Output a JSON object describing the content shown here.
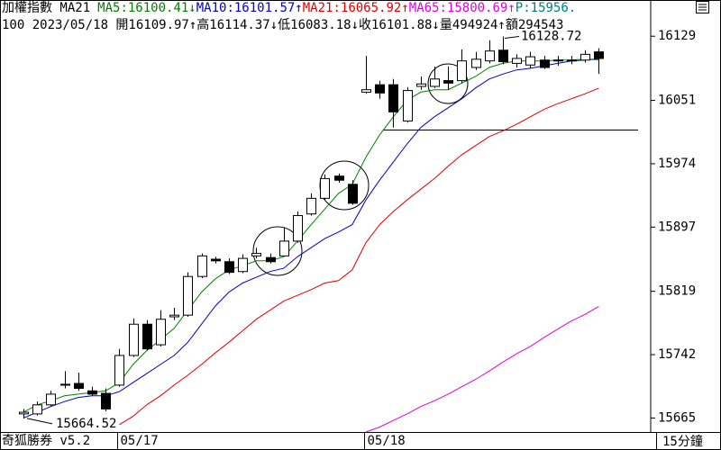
{
  "chart_data": {
    "type": "candlestick",
    "title": "加權指數 MA21",
    "subtitle": "100 2023/05/18 開16109.97↑高16114.37↓低16083.18↓收16101.88↓量494924↑額294543",
    "indicator": {
      "text": "P:15956.",
      "color": "#008080"
    },
    "categories": [
      null,
      null,
      null,
      null,
      null,
      null,
      null,
      "05/17",
      null,
      null,
      null,
      null,
      null,
      null,
      null,
      null,
      null,
      null,
      null,
      null,
      null,
      null,
      null,
      null,
      null,
      "05/18",
      null,
      null,
      null,
      null,
      null,
      null,
      null,
      null,
      null,
      null,
      null,
      null,
      null,
      null,
      null,
      null,
      null
    ],
    "open": [
      15670,
      15670,
      15681,
      15705,
      15707,
      15698,
      15695,
      15705,
      15741,
      15779,
      15754,
      15788,
      15790,
      15837,
      15858,
      15855,
      15843,
      15862,
      15860,
      15862,
      15880,
      15913,
      15932,
      15959,
      15949,
      16061,
      16070,
      16070,
      16026,
      16068,
      16068,
      16075,
      16075,
      16091,
      16099,
      16112,
      16096,
      16094,
      16100,
      16099,
      16100,
      16100,
      16109.97
    ],
    "high": [
      15676,
      15685,
      15698,
      15722,
      15720,
      15703,
      15701,
      15749,
      15786,
      15784,
      15796,
      15799,
      15842,
      15865,
      15861,
      15859,
      15864,
      15872,
      15865,
      15897,
      15916,
      15938,
      15961,
      15962,
      15954,
      16105,
      16075,
      16077,
      16067,
      16080,
      16092,
      16092,
      16113,
      16110,
      16124,
      16128.72,
      16107,
      16110,
      16105,
      16105,
      16105,
      16112,
      16114.37
    ],
    "low": [
      15664.52,
      15668,
      15679,
      15701,
      15698,
      15692,
      15673,
      15703,
      15739,
      15747,
      15752,
      15784,
      15788,
      15835,
      15853,
      15840,
      15841,
      15859,
      15853,
      15862,
      15878,
      15911,
      15930,
      15951,
      15924,
      16059,
      16053,
      16018,
      16024,
      16064,
      16066,
      16064,
      16072,
      16088,
      16096,
      16095,
      16091,
      16090,
      16089,
      16093,
      16095,
      16097,
      16083.18
    ],
    "close": [
      15672,
      15681,
      15694,
      15706,
      15701,
      15694,
      15676,
      15741,
      15779,
      15749,
      15785,
      15790,
      15837,
      15862,
      15856,
      15842,
      15859,
      15865,
      15855,
      15880,
      15911,
      15932,
      15956,
      15954,
      15926,
      16064,
      16060,
      16037,
      16063,
      16071,
      16077,
      16072,
      16099,
      16101,
      16111,
      16098,
      16102,
      16104,
      16091,
      16100,
      16099,
      16107,
      16101.88
    ],
    "up_color": "#ffffff",
    "down_color": "#000000",
    "series": [
      {
        "label": "MA5:16100.41↓",
        "color": "#008000",
        "values": [
          15672,
          15681,
          15686,
          15692,
          15694,
          15696,
          15698,
          15708,
          15730,
          15747,
          15760,
          15774,
          15796,
          15818,
          15834,
          15845,
          15850,
          15856,
          15856,
          15861,
          15880,
          15900,
          15919,
          15938,
          15949,
          15982,
          16009,
          16031,
          16051,
          16061,
          16064,
          16064,
          16072,
          16080,
          16091,
          16096,
          16099,
          16099,
          16099,
          16100,
          16100,
          16101,
          16100.41
        ]
      },
      {
        "label": "MA10:16101.57↑",
        "color": "#0000c0",
        "values": [
          15665,
          15672,
          15679,
          15685,
          15690,
          15692,
          15692,
          15697,
          15708,
          15719,
          15730,
          15741,
          15757,
          15779,
          15801,
          15818,
          15829,
          15836,
          15843,
          15847,
          15861,
          15872,
          15883,
          15891,
          15900,
          15930,
          15954,
          15976,
          15998,
          16018,
          16031,
          16042,
          16053,
          16066,
          16077,
          16083,
          16088,
          16090,
          16093,
          16096,
          16099,
          16100,
          16101.57
        ]
      },
      {
        "label": "MA21:16065.92↑",
        "color": "#e00000",
        "values": [
          null,
          null,
          null,
          null,
          null,
          null,
          null,
          15657,
          15667,
          15681,
          15692,
          15705,
          15717,
          15730,
          15744,
          15757,
          15771,
          15785,
          15796,
          15807,
          15814,
          15821,
          15829,
          15832,
          15845,
          15878,
          15900,
          15916,
          15930,
          15943,
          15956,
          15971,
          15985,
          15996,
          16007,
          16014,
          16022,
          16031,
          16040,
          16047,
          16053,
          16059,
          16065.92
        ]
      },
      {
        "label": "MA65:15800.69↑",
        "color": "#e000e0",
        "values": [
          null,
          null,
          null,
          null,
          null,
          null,
          null,
          null,
          null,
          null,
          null,
          null,
          null,
          null,
          null,
          null,
          null,
          null,
          null,
          null,
          null,
          null,
          null,
          null,
          null,
          15648,
          15654,
          15662,
          15670,
          15679,
          15686,
          15694,
          15703,
          15712,
          15722,
          15733,
          15743,
          15752,
          15763,
          15773,
          15783,
          15791,
          15800.69
        ]
      }
    ],
    "hlines": [
      16016
    ],
    "ylim": [
      15648,
      16173
    ],
    "yticks": [
      16129,
      16051,
      15974,
      15897,
      15819,
      15742,
      15665
    ]
  },
  "footer": {
    "brand": "奇狐勝券 v5.2",
    "period": "15分鐘"
  }
}
